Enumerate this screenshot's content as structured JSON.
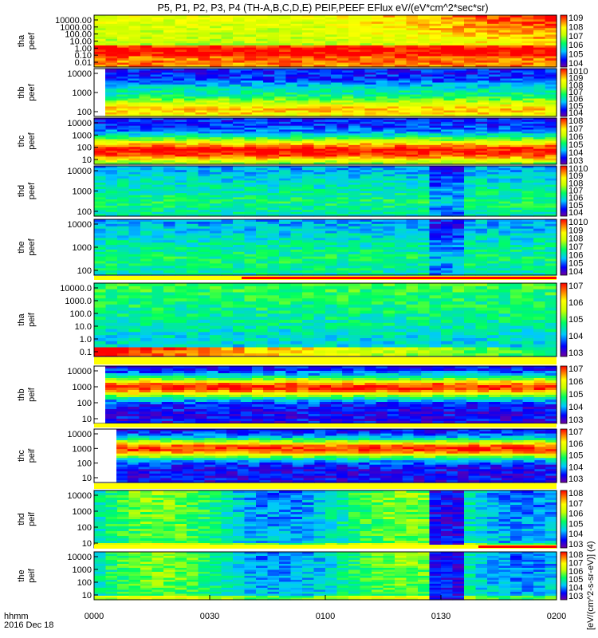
{
  "chart_data": {
    "type": "heatmap",
    "title": "P5, P1, P2, P3, P4 (TH-A,B,C,D,E) PEIF,PEEF EFlux eV/(eV*cm^2*sec*sr)",
    "x_axis": {
      "ticks": [
        "0000",
        "0030",
        "0100",
        "0130",
        "0200"
      ],
      "label": "hhmm",
      "date": "2016 Dec 18"
    },
    "colorbar_label": "[eV/(cm^2-s-sr-eV)] (4)",
    "panels": [
      {
        "probe": "tha",
        "product": "peef",
        "ylabel": "tha\npeef",
        "ticks": [
          "10000.00",
          "1000.00",
          "100.00",
          "10.00",
          "1.00",
          "0.10",
          "0.01"
        ],
        "cbar": [
          "10^9",
          "10^8",
          "10^7",
          "10^6",
          "10^5",
          "10^4"
        ],
        "scheme": "hot"
      },
      {
        "probe": "thb",
        "product": "peef",
        "ylabel": "thb\npeef",
        "ticks": [
          "10000",
          "1000",
          "100"
        ],
        "cbar": [
          "10^10",
          "10^9",
          "10^8",
          "10^7",
          "10^6",
          "10^5",
          "10^4"
        ],
        "scheme": "band-e"
      },
      {
        "probe": "thc",
        "product": "peef",
        "ylabel": "thc\npeef",
        "ticks": [
          "10000",
          "1000",
          "100",
          "10"
        ],
        "cbar": [
          "10^8",
          "10^7",
          "10^6",
          "10^5",
          "10^4",
          "10^3"
        ],
        "scheme": "band-e2"
      },
      {
        "probe": "thd",
        "product": "peef",
        "ylabel": "thd\npeef",
        "ticks": [
          "10000",
          "1000",
          "100"
        ],
        "cbar": [
          "10^10",
          "10^9",
          "10^8",
          "10^7",
          "10^6",
          "10^5",
          "10^4"
        ],
        "scheme": "cool"
      },
      {
        "probe": "the",
        "product": "peef",
        "ylabel": "the\npeef",
        "ticks": [
          "10000",
          "1000",
          "100"
        ],
        "cbar": [
          "10^10",
          "10^9",
          "10^8",
          "10^7",
          "10^6",
          "10^5",
          "10^4"
        ],
        "scheme": "cool"
      },
      {
        "probe": "tha",
        "product": "peif",
        "ylabel": "tha\npeif",
        "ticks": [
          "10000.0",
          "1000.0",
          "100.0",
          "10.0",
          "1.0",
          "0.1"
        ],
        "cbar": [
          "10^7",
          "10^6",
          "10^5",
          "10^4",
          "10^3"
        ],
        "scheme": "ion-a"
      },
      {
        "probe": "thb",
        "product": "peif",
        "ylabel": "thb\npeif",
        "ticks": [
          "10000",
          "1000",
          "100",
          "10"
        ],
        "cbar": [
          "10^7",
          "10^6",
          "10^5",
          "10^4",
          "10^3"
        ],
        "scheme": "band-i"
      },
      {
        "probe": "thc",
        "product": "peif",
        "ylabel": "thc\npeif",
        "ticks": [
          "10000",
          "1000",
          "100",
          "10"
        ],
        "cbar": [
          "10^7",
          "10^6",
          "10^5",
          "10^4",
          "10^3"
        ],
        "scheme": "band-i"
      },
      {
        "probe": "thd",
        "product": "peif",
        "ylabel": "thd\npeif",
        "ticks": [
          "10000",
          "1000",
          "100",
          "10"
        ],
        "cbar": [
          "10^8",
          "10^7",
          "10^6",
          "10^5",
          "10^4",
          "10^3"
        ],
        "scheme": "green"
      },
      {
        "probe": "the",
        "product": "peif",
        "ylabel": "the\npeif",
        "ticks": [
          "10000",
          "1000",
          "100",
          "10"
        ],
        "cbar": [
          "10^8",
          "10^7",
          "10^6",
          "10^5",
          "10^4",
          "10^3"
        ],
        "scheme": "green"
      }
    ],
    "grid": false,
    "legend": "colorbars-right"
  }
}
